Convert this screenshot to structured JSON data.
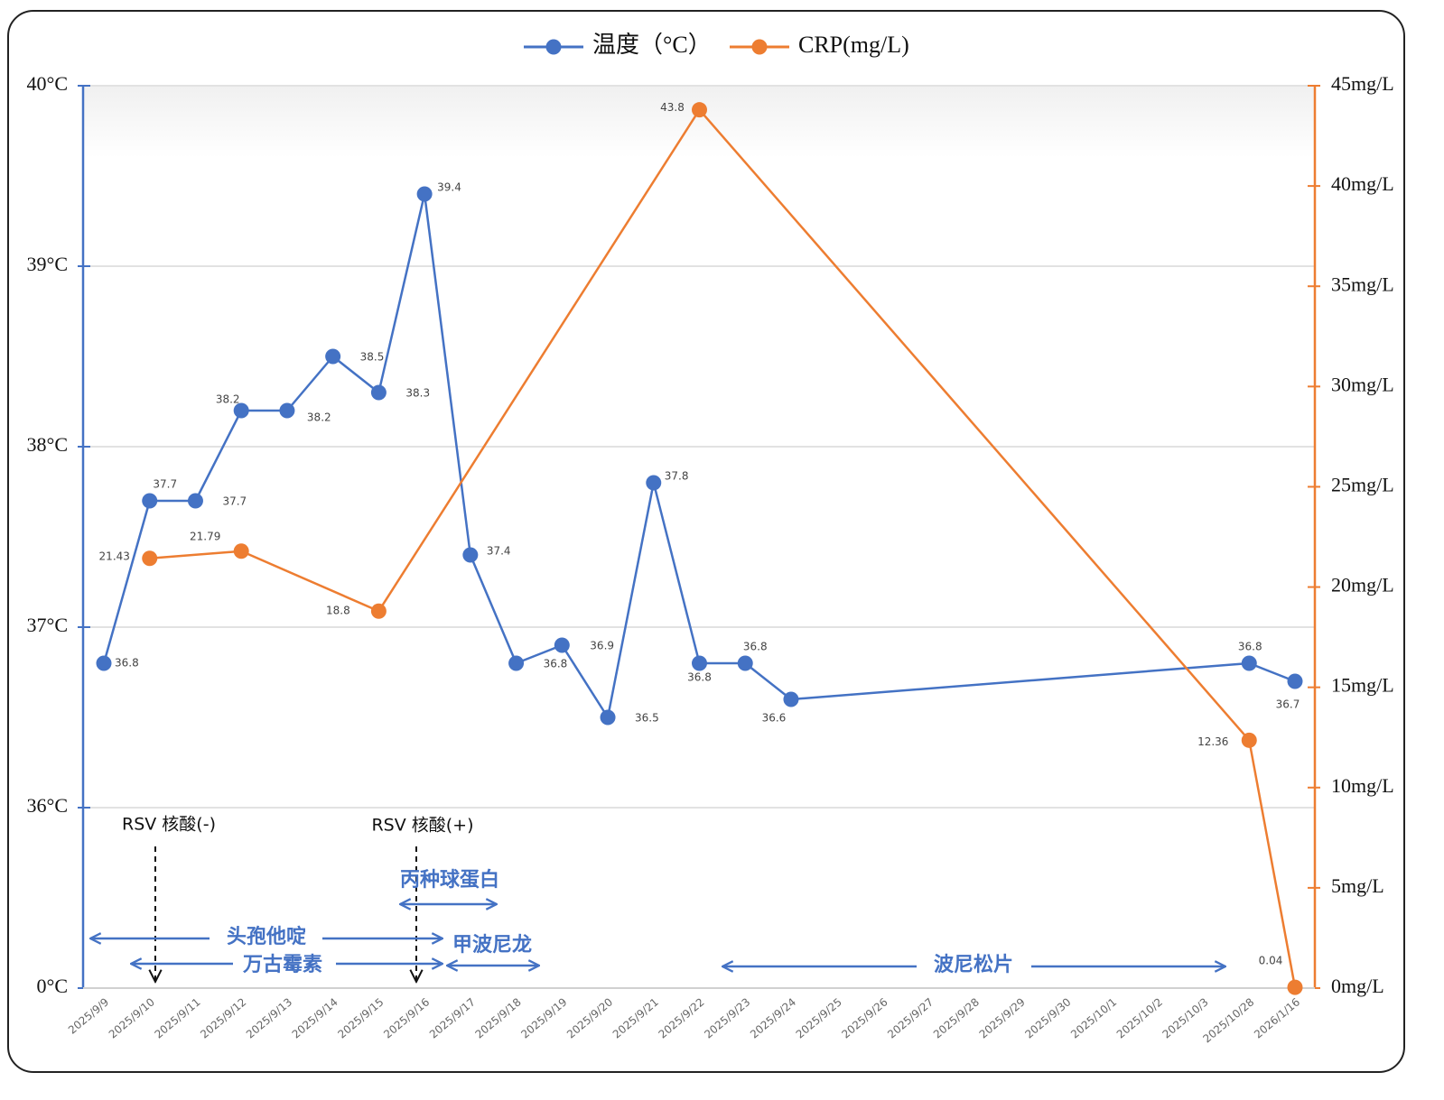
{
  "chart_data": {
    "type": "line",
    "categories": [
      "2025/9/9",
      "2025/9/10",
      "2025/9/11",
      "2025/9/12",
      "2025/9/13",
      "2025/9/14",
      "2025/9/15",
      "2025/9/16",
      "2025/9/17",
      "2025/9/18",
      "2025/9/19",
      "2025/9/20",
      "2025/9/21",
      "2025/9/22",
      "2025/9/23",
      "2025/9/24",
      "2025/9/25",
      "2025/9/26",
      "2025/9/27",
      "2025/9/28",
      "2025/9/29",
      "2025/9/30",
      "2025/10/1",
      "2025/10/2",
      "2025/10/3",
      "2025/10/28",
      "2026/1/16"
    ],
    "series": [
      {
        "name": "温度（°C）",
        "color": "#4472c4",
        "values": [
          36.8,
          37.7,
          37.7,
          38.2,
          38.2,
          38.5,
          38.3,
          39.4,
          37.4,
          36.8,
          36.9,
          36.5,
          37.8,
          36.8,
          36.8,
          36.6,
          null,
          null,
          null,
          null,
          null,
          null,
          null,
          null,
          null,
          36.8,
          36.7
        ]
      },
      {
        "name": "CRP(mg/L)",
        "color": "#ed7d31",
        "axis": "y2",
        "values": [
          null,
          21.43,
          null,
          21.79,
          null,
          null,
          18.8,
          null,
          null,
          null,
          null,
          null,
          null,
          43.8,
          null,
          null,
          null,
          null,
          null,
          null,
          null,
          null,
          null,
          null,
          null,
          12.36,
          0.04
        ]
      }
    ],
    "connect_gaps": true,
    "ylim": [
      0,
      40
    ],
    "ybreak": [
      0,
      35
    ],
    "yticks": [
      {
        "value": 0,
        "label": "0°C"
      },
      {
        "value": 36,
        "label": "36°C"
      },
      {
        "value": 37,
        "label": "37°C"
      },
      {
        "value": 38,
        "label": "38°C"
      },
      {
        "value": 39,
        "label": "39°C"
      },
      {
        "value": 40,
        "label": "40°C"
      }
    ],
    "y2lim": [
      0,
      45
    ],
    "y2ticks": [
      {
        "value": 0,
        "label": "0mg/L"
      },
      {
        "value": 5,
        "label": "5mg/L"
      },
      {
        "value": 10,
        "label": "10mg/L"
      },
      {
        "value": 15,
        "label": "15mg/L"
      },
      {
        "value": 20,
        "label": "20mg/L"
      },
      {
        "value": 25,
        "label": "25mg/L"
      },
      {
        "value": 30,
        "label": "30mg/L"
      },
      {
        "value": 35,
        "label": "35mg/L"
      },
      {
        "value": 40,
        "label": "40mg/L"
      },
      {
        "value": 45,
        "label": "45mg/L"
      }
    ],
    "grid": true,
    "legend": "top",
    "annotations": [
      "RSV 核酸(-)",
      "RSV 核酸(+)",
      "头孢他啶",
      "万古霉素",
      "丙种球蛋白",
      "甲波尼龙",
      "波尼松片"
    ]
  }
}
